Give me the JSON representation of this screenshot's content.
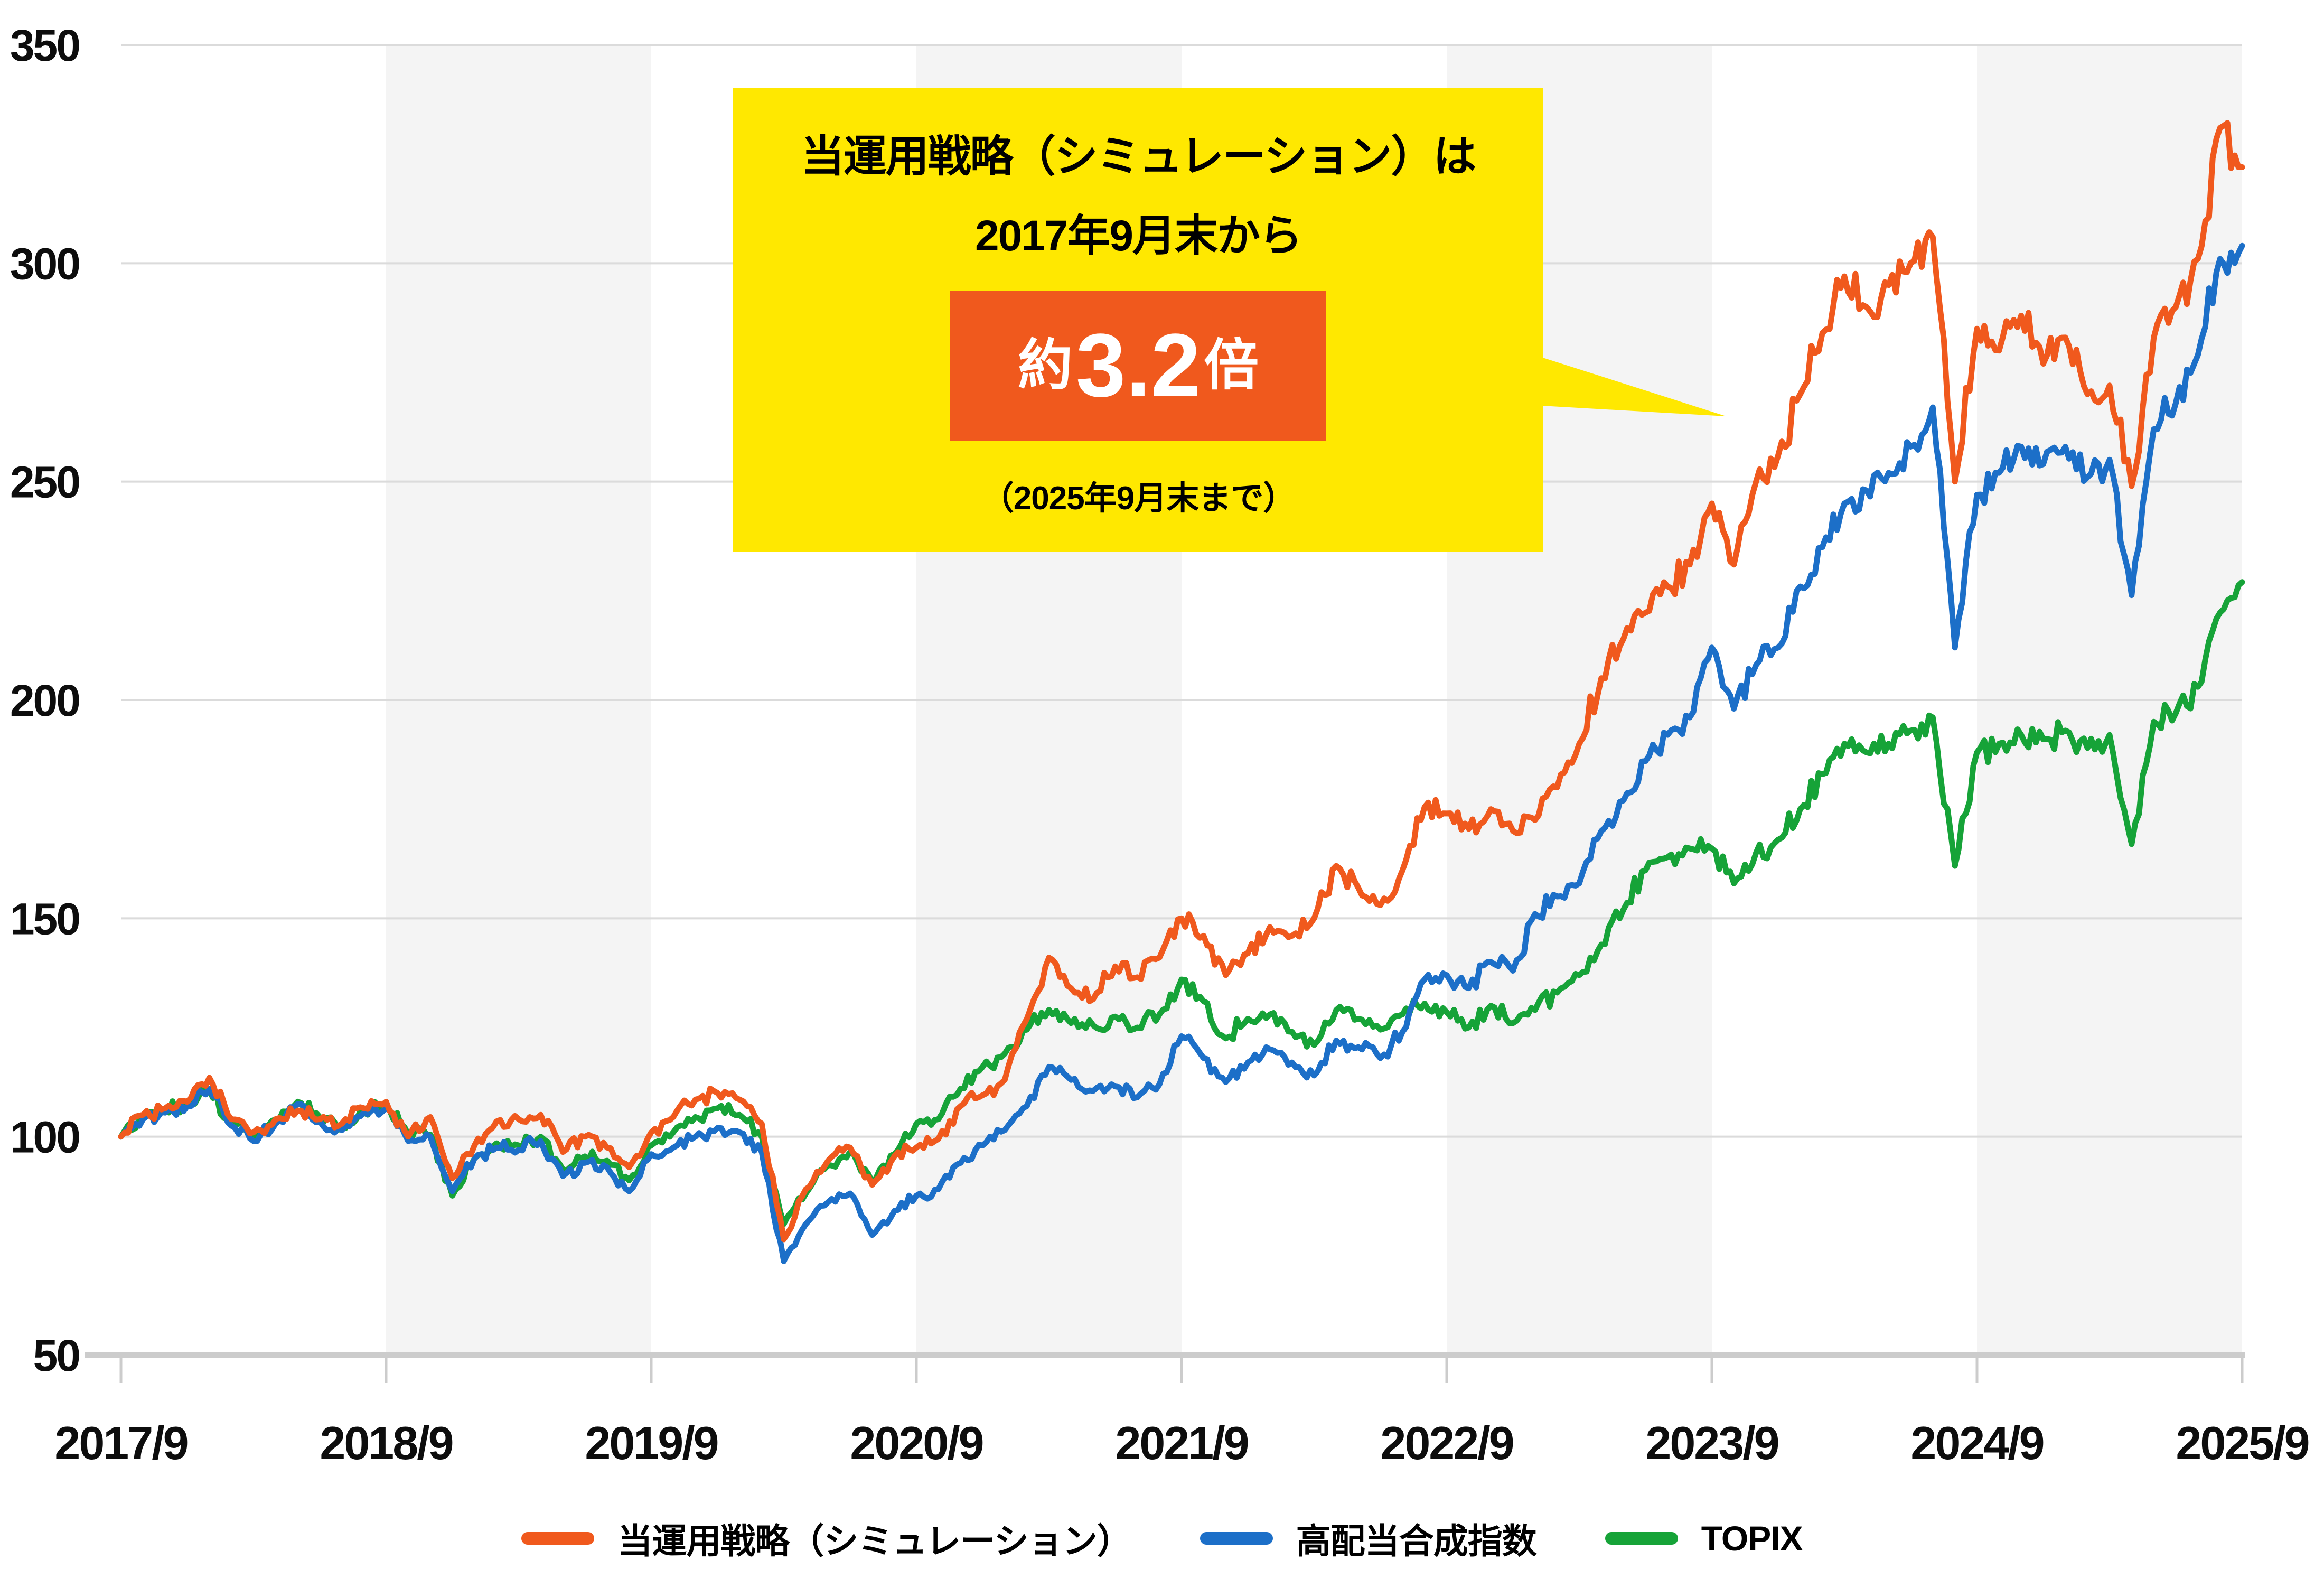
{
  "annotation": {
    "line1": "当運用戦略（シミュレーション）は",
    "line2": "2017年9月末から",
    "highlight_prefix": "約",
    "highlight_value": "3.2",
    "highlight_suffix": "倍",
    "note": "（2025年9月末まで）"
  },
  "colors": {
    "strategy_orange": "#F0591D",
    "composite_blue": "#1C6FC8",
    "topix_green": "#16A338",
    "callout_yellow": "#FFE800",
    "highlight_bg": "#F0591D",
    "highlight_text": "#FFFFFF",
    "gridline": "#DBDBDB",
    "axis_line": "#CCCCCC",
    "year_band": "#F4F4F4",
    "text": "#0D0D0D",
    "background": "#FFFFFF"
  },
  "chart_data": {
    "type": "line",
    "title": "",
    "xlabel": "",
    "ylabel": "",
    "index_base": 100,
    "ylim": [
      50,
      350
    ],
    "y_ticks": [
      350,
      300,
      250,
      200,
      150,
      100,
      50
    ],
    "x_tick_labels": [
      "2017/9",
      "2018/9",
      "2019/9",
      "2020/9",
      "2021/9",
      "2022/9",
      "2023/9",
      "2024/9",
      "2025/9"
    ],
    "months_per_interval": 12,
    "grid": "horizontal",
    "year_bands": "alternating, gray on 2018/9-2019/9, 2020/9-2021/9, 2022/9-2023/9, 2024/9-2025/9",
    "legend_position": "bottom",
    "noise_pct": 1.1,
    "series": [
      {
        "name": "当運用戦略（シミュレーション）",
        "color_key": "strategy_orange",
        "final_multiple_label": "約3.2倍",
        "values": [
          100,
          105,
          106.5,
          108,
          113.5,
          104,
          101,
          104,
          106,
          104,
          103,
          106.5,
          108,
          100,
          104.5,
          90.5,
          98,
          103.5,
          104,
          105,
          96.5,
          100,
          97.5,
          93,
          101,
          104.5,
          108.5,
          110,
          108.5,
          103,
          76.5,
          88,
          94.5,
          97.5,
          89,
          95.5,
          97.5,
          99.5,
          107,
          109.5,
          113,
          127,
          141,
          134,
          131.5,
          139,
          136.5,
          141,
          150,
          146,
          137,
          142,
          148,
          146,
          150,
          162,
          157,
          153,
          161,
          175.5,
          174,
          170.5,
          175,
          170,
          172.5,
          180,
          190,
          205,
          214,
          220,
          226,
          231,
          245,
          231,
          250,
          256,
          270,
          284,
          297,
          290,
          295,
          300,
          306,
          250,
          285,
          280,
          288,
          277,
          283,
          270,
          272,
          249,
          283,
          290,
          301,
          331,
          322
        ]
      },
      {
        "name": "高配当合成指数",
        "color_key": "composite_blue",
        "values": [
          100,
          104,
          105.5,
          107,
          111,
          102.5,
          99,
          103,
          107.5,
          103.5,
          101.5,
          105.5,
          106.5,
          99,
          100,
          87.5,
          95,
          97.5,
          97,
          99,
          91,
          94,
          93,
          87.5,
          96,
          97.5,
          100,
          102,
          101,
          96.5,
          71.5,
          80,
          85,
          87,
          77.5,
          83,
          86.5,
          88,
          94,
          98,
          101.5,
          107,
          116,
          113,
          110.5,
          111.5,
          109,
          112,
          123,
          118,
          112.5,
          117,
          120,
          117,
          114,
          122,
          120.5,
          118,
          124,
          136,
          137,
          134,
          140,
          138,
          151,
          155,
          158,
          170,
          177,
          186,
          192,
          196,
          212,
          198,
          208,
          212,
          226,
          235,
          245,
          248,
          252,
          258,
          267,
          212,
          247,
          252,
          258,
          254,
          258,
          251,
          255,
          224,
          262,
          268,
          279,
          301,
          304
        ]
      },
      {
        "name": "TOPIX",
        "color_key": "topix_green",
        "values": [
          100,
          105,
          106,
          107.5,
          110.5,
          103,
          100,
          104,
          108,
          104.5,
          102,
          105.5,
          107,
          100.5,
          100.5,
          86.5,
          95,
          98.5,
          98,
          100,
          92.5,
          95.5,
          94.5,
          90,
          98,
          101,
          104.5,
          106.5,
          105,
          100,
          80,
          87,
          93.5,
          96.5,
          89.5,
          96,
          103,
          104,
          111,
          116,
          119,
          124.5,
          129,
          126,
          125.5,
          127.5,
          125,
          128,
          136,
          131,
          122.5,
          127,
          128,
          124,
          121,
          129,
          127,
          124.5,
          128,
          130.5,
          128.5,
          125,
          130,
          126,
          129,
          133,
          137,
          144,
          152,
          161,
          164,
          166,
          166,
          158,
          165,
          168,
          175,
          183,
          190,
          188,
          190,
          193,
          196,
          162,
          188,
          190,
          192,
          191,
          193,
          189,
          192,
          167,
          195,
          197,
          203,
          220,
          227
        ]
      }
    ]
  }
}
